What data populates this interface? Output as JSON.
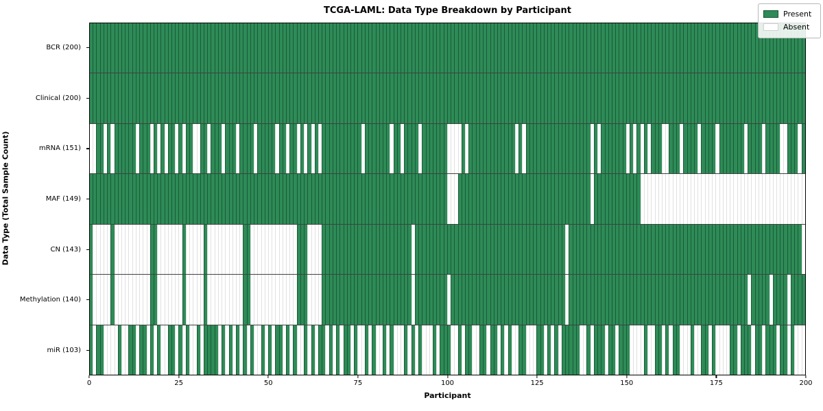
{
  "title": "TCGA-LAML: Data Type Breakdown by Participant",
  "x_axis": {
    "label": "Participant",
    "ticks": [
      0,
      25,
      50,
      75,
      100,
      125,
      150,
      175,
      200
    ],
    "min": 0,
    "max": 200
  },
  "y_axis": {
    "label": "Data Type (Total Sample Count)"
  },
  "legend": {
    "present_label": "Present",
    "absent_label": "Absent"
  },
  "colors": {
    "present": "#2e8b57",
    "absent": "#ffffff"
  },
  "chart_data": {
    "type": "heatmap",
    "title": "TCGA-LAML: Data Type Breakdown by Participant",
    "xlabel": "Participant",
    "ylabel": "Data Type (Total Sample Count)",
    "xlim": [
      0,
      200
    ],
    "n_participants": 200,
    "legend_entries": [
      "Present",
      "Absent"
    ],
    "legend_position": "upper right",
    "encoding": "pattern strings: one char per participant, 1 = Present (green), 0 = Absent (white)",
    "rows": [
      {
        "label": "BCR (200)",
        "data_type": "BCR",
        "present_count": 200,
        "pattern": "11111111111111111111111111111111111111111111111111111111111111111111111111111111111111111111111111111111111111111111111111111111111111111111111111111111111111111111111111111111111111111111111111111111"
      },
      {
        "label": "Clinical (200)",
        "data_type": "Clinical",
        "present_count": 200,
        "pattern": "11111111111111111111111111111111111111111111111111111111111111111111111111111111111111111111111111111111111111111111111111111111111111111111111111111111111111111111111111111111111111111111111111111111"
      },
      {
        "label": "mRNA (151)",
        "data_type": "mRNA",
        "present_count": 151,
        "pattern": "00110101111110111010101101011001101110111011110111110110110101010111111111110111111101101111011111110000101111111111111010111111111111111111010111111101010101110011101111011110111111101111011110011101"
      },
      {
        "label": "MAF (149)",
        "data_type": "MAF",
        "present_count": 149,
        "pattern": "11111111111111111111111111111111111111111111111111111111111111111111111111111111111111111111111111110001111111111111111111111111111111111111011111111111110000000000000000000000000000000000000000000000"
      },
      {
        "label": "CN (143)",
        "data_type": "CN",
        "present_count": 143,
        "pattern": "10000010000000000110000000100000100000000001100000000000001110000111111111111111111111111101111111111111111111111111111111111111111110111111111111111111111111111111111111111111111111111111111111111110111111111"
      },
      {
        "label": "Methylation (140)",
        "data_type": "Methylation",
        "present_count": 140,
        "pattern": "10000010000000000110000000100000100000000001100000000000001110000111111111111111111111111101111111110111111111111111111111111111111110111111111111111111111111111111111111111111111111110111110111101111"
      },
      {
        "label": "miR (103)",
        "data_type": "miR",
        "present_count": 103,
        "pattern": "10110000100110110101001101010010111101010101010010101101010010101101010110100101001010001010100010111001011001101101010011000110101011111001011101101110000100110101100010011010000110111011011101101"
      }
    ]
  }
}
